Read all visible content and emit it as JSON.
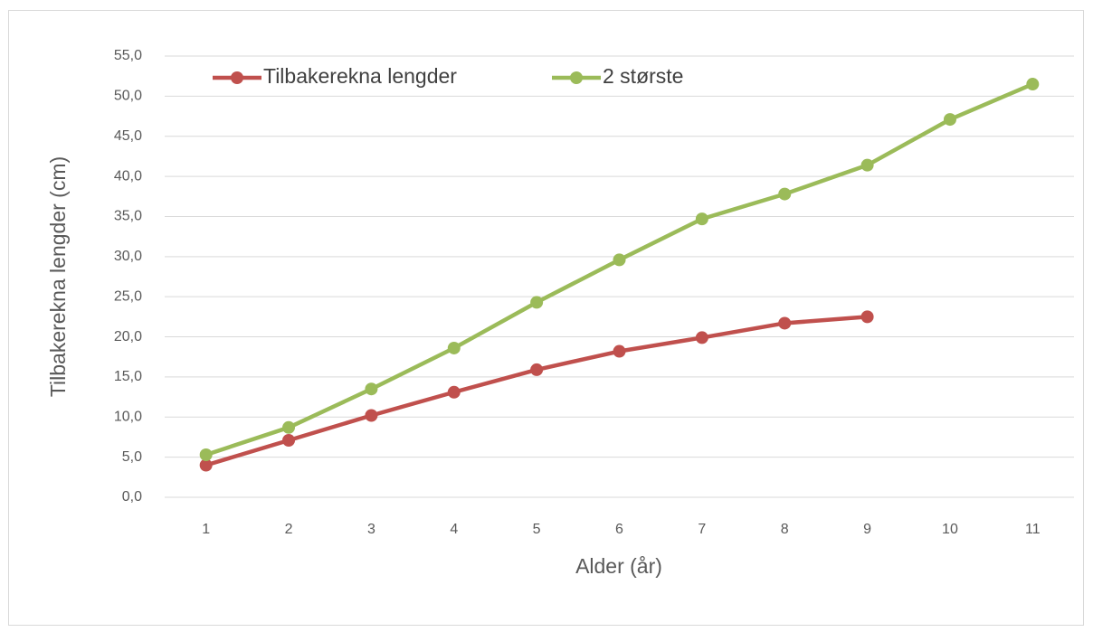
{
  "chart_data": {
    "type": "line",
    "x_label": "Alder (år)",
    "y_label": "Tilbakerekna lengder (cm)",
    "categories": [
      "1",
      "2",
      "3",
      "4",
      "5",
      "6",
      "7",
      "8",
      "9",
      "10",
      "11"
    ],
    "series": [
      {
        "name": "Tilbakerekna lengder",
        "color": "#c0504d",
        "values": [
          4.0,
          7.1,
          10.2,
          13.1,
          15.9,
          18.2,
          19.9,
          21.7,
          22.5,
          null,
          null
        ]
      },
      {
        "name": "2 største",
        "color": "#9bbb59",
        "values": [
          5.3,
          8.7,
          13.5,
          18.6,
          24.3,
          29.6,
          34.7,
          37.8,
          41.4,
          47.1,
          51.5
        ]
      }
    ],
    "ylim": [
      0,
      55
    ],
    "yticks": [
      {
        "value": 0,
        "label": "0,0"
      },
      {
        "value": 5,
        "label": "5,0"
      },
      {
        "value": 10,
        "label": "10,0"
      },
      {
        "value": 15,
        "label": "15,0"
      },
      {
        "value": 20,
        "label": "20,0"
      },
      {
        "value": 25,
        "label": "25,0"
      },
      {
        "value": 30,
        "label": "30,0"
      },
      {
        "value": 35,
        "label": "35,0"
      },
      {
        "value": 40,
        "label": "40,0"
      },
      {
        "value": 45,
        "label": "45,0"
      },
      {
        "value": 50,
        "label": "50,0"
      },
      {
        "value": 55,
        "label": "55,0"
      }
    ],
    "grid": true,
    "legend": "top-left"
  }
}
